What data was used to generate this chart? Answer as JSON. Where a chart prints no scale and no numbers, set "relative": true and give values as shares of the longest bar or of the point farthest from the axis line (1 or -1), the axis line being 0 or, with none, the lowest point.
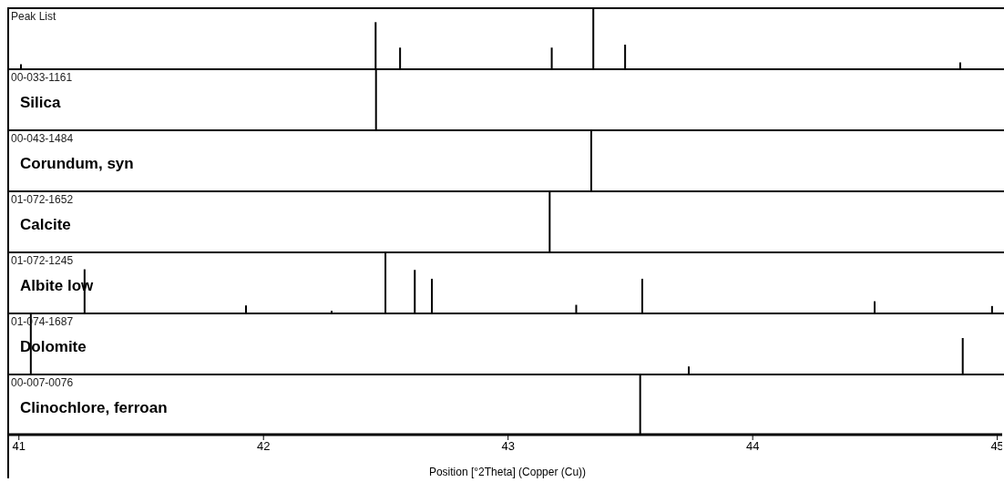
{
  "chart_data": [
    {
      "type": "bar",
      "title": "Peak List",
      "relative": true,
      "xlim": [
        40.96,
        45.02
      ],
      "tick_labels": false,
      "grid": false,
      "legend": false,
      "series": [
        {
          "color": "#000000",
          "x": [
            41.01,
            42.46,
            42.56,
            43.18,
            43.35,
            43.48,
            44.85
          ],
          "values": [
            0.07,
            0.78,
            0.35,
            0.35,
            1,
            0.4,
            0.1
          ]
        }
      ]
    },
    {
      "type": "bar",
      "title": "00-033-1161",
      "subtitle": "Silica",
      "relative": true,
      "xlim": [
        40.96,
        45.02
      ],
      "tick_labels": false,
      "grid": false,
      "legend": false,
      "series": [
        {
          "color": "#000000",
          "x": [
            42.46
          ],
          "values": [
            1
          ]
        }
      ]
    },
    {
      "type": "bar",
      "title": "00-043-1484",
      "subtitle": "Corundum, syn",
      "relative": true,
      "xlim": [
        40.96,
        45.02
      ],
      "tick_labels": false,
      "grid": false,
      "legend": false,
      "series": [
        {
          "color": "#000000",
          "x": [
            43.34
          ],
          "values": [
            1
          ]
        }
      ]
    },
    {
      "type": "bar",
      "title": "01-072-1652",
      "subtitle": "Calcite",
      "relative": true,
      "xlim": [
        40.96,
        45.02
      ],
      "tick_labels": false,
      "grid": false,
      "legend": false,
      "series": [
        {
          "color": "#000000",
          "x": [
            43.17
          ],
          "values": [
            1
          ]
        }
      ]
    },
    {
      "type": "bar",
      "title": "01-072-1245",
      "subtitle": "Albite low",
      "relative": true,
      "xlim": [
        40.96,
        45.02
      ],
      "tick_labels": false,
      "grid": false,
      "legend": false,
      "series": [
        {
          "color": "#000000",
          "x": [
            41.27,
            41.93,
            42.28,
            42.5,
            42.62,
            42.69,
            43.28,
            43.55,
            44.5,
            44.98
          ],
          "values": [
            0.73,
            0.12,
            0.03,
            1,
            0.72,
            0.57,
            0.13,
            0.57,
            0.19,
            0.11
          ]
        }
      ]
    },
    {
      "type": "bar",
      "title": "01-074-1687",
      "subtitle": "Dolomite",
      "relative": true,
      "xlim": [
        40.96,
        45.02
      ],
      "tick_labels": false,
      "grid": false,
      "legend": false,
      "series": [
        {
          "color": "#000000",
          "x": [
            41.05,
            43.74,
            44.86
          ],
          "values": [
            1,
            0.12,
            0.6
          ]
        }
      ]
    },
    {
      "type": "bar",
      "title": "00-007-0076",
      "subtitle": "Clinochlore, ferroan",
      "xlabel": "Position [°2Theta] (Copper (Cu))",
      "relative": true,
      "xlim": [
        40.96,
        45.02
      ],
      "xticks": [
        41,
        42,
        43,
        44,
        45
      ],
      "tick_labels": "x",
      "grid": false,
      "legend": false,
      "series": [
        {
          "color": "#000000",
          "x": [
            43.54
          ],
          "values": [
            1
          ]
        }
      ]
    }
  ]
}
